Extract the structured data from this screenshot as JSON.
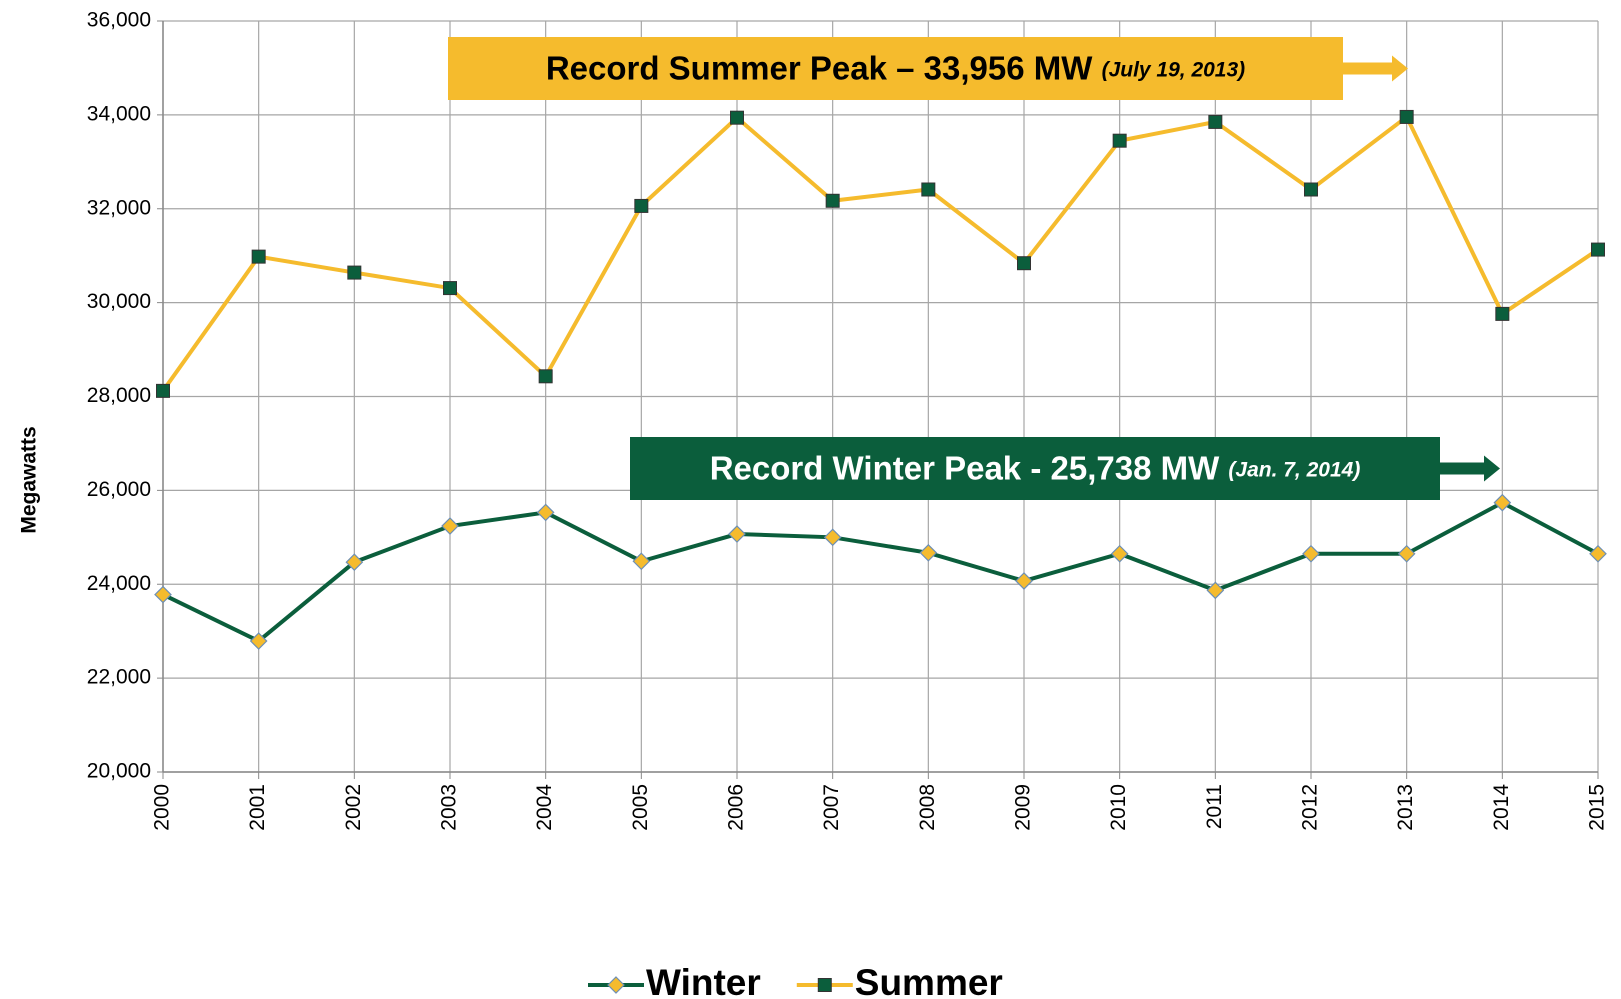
{
  "chart_data": {
    "type": "line",
    "y_label": "Megawatts",
    "categories": [
      "2000",
      "2001",
      "2002",
      "2003",
      "2004",
      "2005",
      "2006",
      "2007",
      "2008",
      "2009",
      "2010",
      "2011",
      "2012",
      "2013",
      "2014",
      "2015"
    ],
    "series": [
      {
        "name": "Winter",
        "color": "#0b5e3c",
        "marker_color": "#f5bb2d",
        "marker": "diamond",
        "values": [
          23780,
          22790,
          24470,
          25240,
          25530,
          24490,
          25070,
          25000,
          24670,
          24070,
          24650,
          23870,
          24650,
          24650,
          25738,
          24650
        ]
      },
      {
        "name": "Summer",
        "color": "#f5bb2d",
        "marker_color": "#0b5e3c",
        "marker": "square",
        "values": [
          28120,
          30980,
          30640,
          30310,
          28430,
          32060,
          33940,
          32170,
          32410,
          30840,
          33450,
          33850,
          32410,
          33956,
          29760,
          31130
        ]
      }
    ],
    "ylim": [
      20000,
      36000
    ],
    "yticks": [
      {
        "value": 20000,
        "label": "20,000"
      },
      {
        "value": 22000,
        "label": "22,000"
      },
      {
        "value": 24000,
        "label": "24,000"
      },
      {
        "value": 26000,
        "label": "26,000"
      },
      {
        "value": 28000,
        "label": "28,000"
      },
      {
        "value": 30000,
        "label": "30,000"
      },
      {
        "value": 32000,
        "label": "32,000"
      },
      {
        "value": 34000,
        "label": "34,000"
      },
      {
        "value": 36000,
        "label": "36,000"
      }
    ],
    "grid": true,
    "legend": "bottom",
    "annotations": [
      {
        "text": "Record Summer Peak – 33,956 MW",
        "note": "(July 19, 2013)",
        "color": "#f5bb2d",
        "text_color": "#000000"
      },
      {
        "text": "Record Winter Peak - 25,738 MW",
        "note": "(Jan. 7, 2014)",
        "color": "#0b5e3c",
        "text_color": "#ffffff"
      }
    ]
  }
}
